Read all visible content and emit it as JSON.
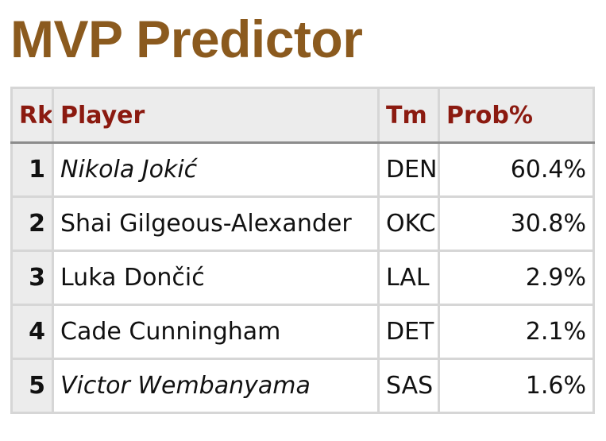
{
  "title": "MVP Predictor",
  "colors": {
    "title": "#8b5a1e",
    "header_text": "#8b1a10"
  },
  "table": {
    "headers": {
      "rank": "Rk",
      "player": "Player",
      "team": "Tm",
      "prob": "Prob%"
    },
    "rows": [
      {
        "rank": "1",
        "player": "Nikola Jokić",
        "team": "DEN",
        "prob": "60.4%",
        "italic": true
      },
      {
        "rank": "2",
        "player": "Shai Gilgeous-Alexander",
        "team": "OKC",
        "prob": "30.8%",
        "italic": false
      },
      {
        "rank": "3",
        "player": "Luka Dončić",
        "team": "LAL",
        "prob": "2.9%",
        "italic": false
      },
      {
        "rank": "4",
        "player": "Cade Cunningham",
        "team": "DET",
        "prob": "2.1%",
        "italic": false
      },
      {
        "rank": "5",
        "player": "Victor Wembanyama",
        "team": "SAS",
        "prob": "1.6%",
        "italic": true
      }
    ]
  }
}
